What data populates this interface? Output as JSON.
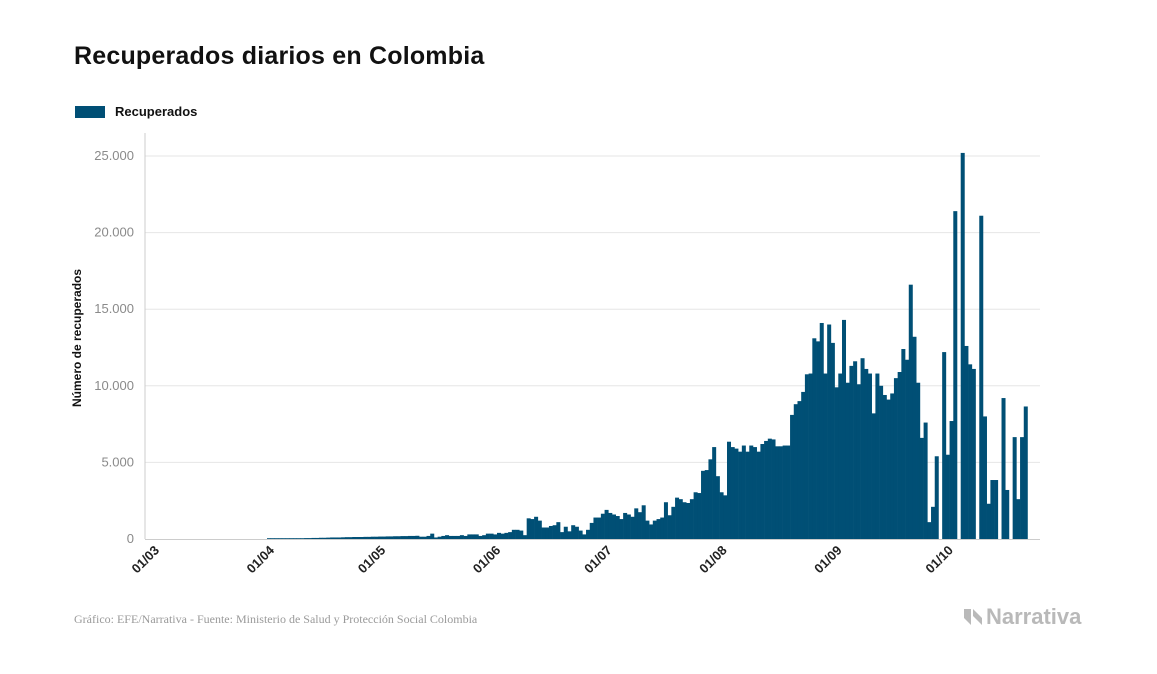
{
  "header": {
    "title": "Recuperados diarios en Colombia"
  },
  "footer": {
    "source": "Gráfico: EFE/Narrativa - Fuente: Ministerio de Salud y Protección Social Colombia",
    "brand": "Narrativa"
  },
  "colors": {
    "bar": "#004f75",
    "grid": "#e6e6e6",
    "axis": "#cccccc"
  },
  "chart_data": {
    "type": "bar",
    "ylabel": "Número de recuperados",
    "ylim": [
      0,
      26500
    ],
    "yticks": [
      0,
      5000,
      10000,
      15000,
      20000,
      25000
    ],
    "ytick_labels": [
      "0",
      "5.000",
      "10.000",
      "15.000",
      "20.000",
      "25.000"
    ],
    "xticks": [
      "01/03",
      "01/04",
      "01/05",
      "01/06",
      "01/07",
      "01/08",
      "01/09",
      "01/10"
    ],
    "legend": "Recuperados",
    "legend_position": "top-left",
    "grid": true,
    "series": [
      {
        "name": "Recuperados",
        "start_date": "2020-03-01",
        "values": [
          0,
          0,
          0,
          0,
          0,
          0,
          0,
          0,
          0,
          0,
          0,
          0,
          0,
          0,
          0,
          0,
          0,
          0,
          0,
          0,
          0,
          0,
          0,
          0,
          0,
          0,
          0,
          0,
          0,
          0,
          0,
          10,
          10,
          20,
          20,
          20,
          30,
          30,
          40,
          40,
          50,
          60,
          60,
          70,
          70,
          80,
          80,
          90,
          100,
          100,
          100,
          110,
          120,
          120,
          130,
          130,
          130,
          140,
          140,
          150,
          150,
          160,
          160,
          170,
          170,
          180,
          180,
          190,
          190,
          200,
          200,
          210,
          150,
          150,
          200,
          350,
          100,
          150,
          200,
          250,
          200,
          200,
          200,
          250,
          200,
          300,
          300,
          300,
          200,
          250,
          350,
          350,
          300,
          400,
          350,
          400,
          450,
          600,
          600,
          550,
          250,
          1350,
          1300,
          1450,
          1200,
          750,
          750,
          850,
          900,
          1100,
          450,
          800,
          500,
          900,
          800,
          550,
          300,
          600,
          1050,
          1400,
          1400,
          1650,
          1900,
          1700,
          1600,
          1500,
          1300,
          1700,
          1600,
          1450,
          2000,
          1750,
          2200,
          1200,
          950,
          1200,
          1300,
          1400,
          2400,
          1550,
          2100,
          2700,
          2600,
          2400,
          2350,
          2600,
          3050,
          3000,
          4450,
          4500,
          5200,
          6000,
          4100,
          3050,
          2850,
          6350,
          6000,
          5900,
          5700,
          6100,
          5700,
          6100,
          6000,
          5700,
          6200,
          6400,
          6550,
          6500,
          6050,
          6050,
          6100,
          6100,
          8100,
          8800,
          9000,
          9600,
          10750,
          10800,
          13100,
          12900,
          14100,
          10800,
          14000,
          12800,
          9900,
          10800,
          14300,
          10200,
          11300,
          11600,
          10100,
          11800,
          11100,
          10800,
          8200,
          10800,
          10000,
          9400,
          9100,
          9500,
          10500,
          10900,
          12400,
          11700,
          16600,
          13200,
          10200,
          6600,
          7600,
          1100,
          2100,
          5400,
          0,
          12200,
          5500,
          7700,
          21400,
          0,
          25200,
          12600,
          11400,
          11100,
          0,
          21100,
          8000,
          2300,
          3850,
          3850,
          0,
          9200,
          3200,
          0,
          6650,
          2600,
          6650,
          8650
        ]
      }
    ]
  }
}
